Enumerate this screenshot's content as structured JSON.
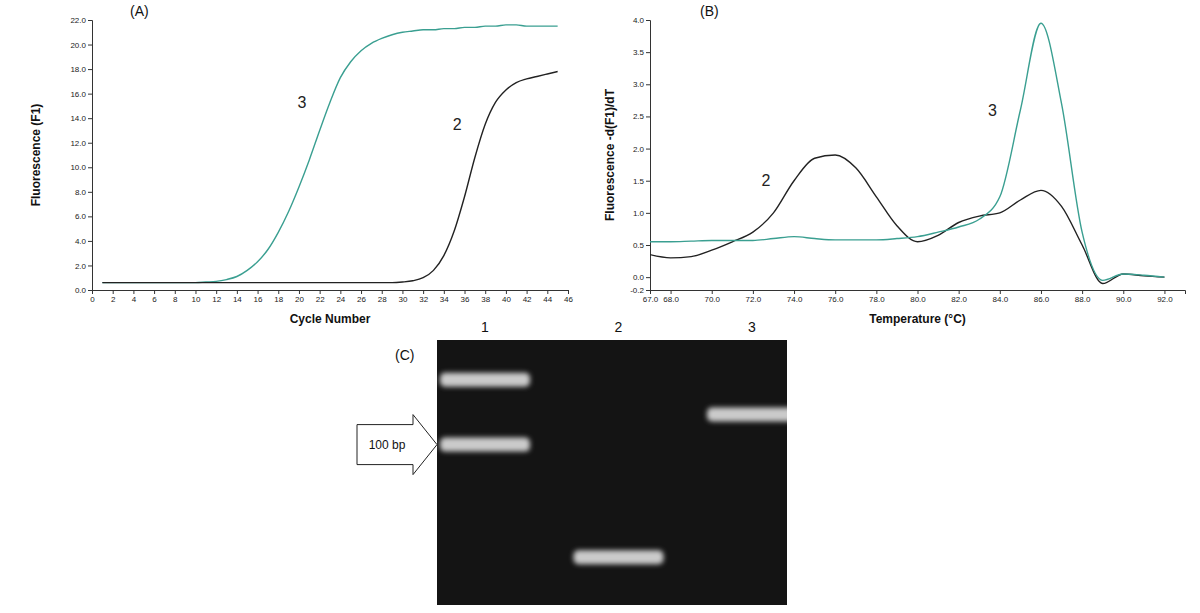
{
  "chart_data": [
    {
      "type": "line",
      "title": "(A)",
      "x_label": "Cycle Number",
      "y_label": "Fluorescence (F1)",
      "x": [
        1,
        2,
        3,
        4,
        5,
        6,
        7,
        8,
        9,
        10,
        11,
        12,
        13,
        14,
        15,
        16,
        17,
        18,
        19,
        20,
        21,
        22,
        23,
        24,
        25,
        26,
        27,
        28,
        29,
        30,
        31,
        32,
        33,
        34,
        35,
        36,
        37,
        38,
        39,
        40,
        41,
        42,
        43,
        44,
        45
      ],
      "series": [
        {
          "name": "3",
          "color": "#3a9f91",
          "values": [
            0.6,
            0.6,
            0.6,
            0.6,
            0.6,
            0.6,
            0.6,
            0.6,
            0.6,
            0.6,
            0.65,
            0.7,
            0.85,
            1.1,
            1.6,
            2.3,
            3.3,
            4.7,
            6.4,
            8.4,
            10.6,
            13.0,
            15.3,
            17.3,
            18.6,
            19.5,
            20.1,
            20.5,
            20.8,
            21.0,
            21.1,
            21.2,
            21.2,
            21.3,
            21.3,
            21.4,
            21.4,
            21.5,
            21.5,
            21.6,
            21.6,
            21.5,
            21.5,
            21.5,
            21.5
          ]
        },
        {
          "name": "2",
          "color": "#222222",
          "values": [
            0.6,
            0.6,
            0.6,
            0.6,
            0.6,
            0.6,
            0.6,
            0.6,
            0.6,
            0.6,
            0.6,
            0.6,
            0.6,
            0.6,
            0.6,
            0.6,
            0.6,
            0.6,
            0.6,
            0.6,
            0.6,
            0.6,
            0.6,
            0.6,
            0.6,
            0.6,
            0.6,
            0.6,
            0.6,
            0.65,
            0.75,
            1.0,
            1.6,
            2.8,
            4.8,
            7.6,
            10.8,
            13.5,
            15.3,
            16.3,
            16.9,
            17.2,
            17.4,
            17.6,
            17.8
          ]
        }
      ],
      "xlim": [
        0,
        46
      ],
      "xticks": [
        0,
        2,
        4,
        6,
        8,
        10,
        12,
        14,
        16,
        18,
        20,
        22,
        24,
        26,
        28,
        30,
        32,
        34,
        36,
        38,
        40,
        42,
        44,
        46
      ],
      "ylim": [
        0,
        22
      ],
      "yticks": [
        {
          "value": 0,
          "label": "0.0"
        },
        {
          "value": 2,
          "label": "2.0"
        },
        {
          "value": 4,
          "label": "4.0"
        },
        {
          "value": 6,
          "label": "6.0"
        },
        {
          "value": 8,
          "label": "8.0"
        },
        {
          "value": 10,
          "label": "10.0"
        },
        {
          "value": 12,
          "label": "12.0"
        },
        {
          "value": 14,
          "label": "14.0"
        },
        {
          "value": 16,
          "label": "16.0"
        },
        {
          "value": 18,
          "label": "18.0"
        },
        {
          "value": 20,
          "label": "20.0"
        },
        {
          "value": 22,
          "label": "22.0"
        }
      ],
      "grid": false
    },
    {
      "type": "line",
      "title": "(B)",
      "x_label": "Temperature (°C)",
      "y_label": "Fluorescence -d(F1)/dT",
      "x": [
        67,
        68,
        69,
        70,
        71,
        72,
        73,
        74,
        75,
        76,
        77,
        78,
        79,
        80,
        81,
        82,
        83,
        84,
        85,
        86,
        87,
        88,
        89,
        90,
        91,
        92
      ],
      "series": [
        {
          "name": "2",
          "color": "#222222",
          "values": [
            0.35,
            0.3,
            0.32,
            0.42,
            0.55,
            0.7,
            1.0,
            1.5,
            1.85,
            1.9,
            1.7,
            1.25,
            0.8,
            0.55,
            0.65,
            0.85,
            0.95,
            1.0,
            1.2,
            1.35,
            1.1,
            0.5,
            -0.1,
            0.05,
            0.02,
            0.0
          ]
        },
        {
          "name": "3",
          "color": "#3a9f91",
          "values": [
            0.55,
            0.55,
            0.56,
            0.57,
            0.57,
            0.57,
            0.6,
            0.63,
            0.6,
            0.58,
            0.58,
            0.58,
            0.6,
            0.63,
            0.7,
            0.78,
            0.9,
            1.25,
            2.6,
            3.95,
            2.7,
            0.7,
            -0.05,
            0.05,
            0.03,
            0.0
          ]
        }
      ],
      "xlim": [
        67,
        93
      ],
      "xticks": [
        {
          "value": 67,
          "label": "67.0"
        },
        {
          "value": 68,
          "label": "68.0"
        },
        {
          "value": 70,
          "label": "70.0"
        },
        {
          "value": 72,
          "label": "72.0"
        },
        {
          "value": 74,
          "label": "74.0"
        },
        {
          "value": 76,
          "label": "76.0"
        },
        {
          "value": 78,
          "label": "78.0"
        },
        {
          "value": 80,
          "label": "80.0"
        },
        {
          "value": 82,
          "label": "82.0"
        },
        {
          "value": 84,
          "label": "84.0"
        },
        {
          "value": 86,
          "label": "86.0"
        },
        {
          "value": 88,
          "label": "88.0"
        },
        {
          "value": 90,
          "label": "90.0"
        },
        {
          "value": 92,
          "label": "92.0"
        }
      ],
      "ylim": [
        -0.2,
        4.0
      ],
      "yticks": [
        -0.2,
        {
          "value": 0,
          "label": "0.0"
        },
        0.5,
        {
          "value": 1,
          "label": "1.0"
        },
        1.5,
        {
          "value": 2,
          "label": "2.0"
        },
        2.5,
        {
          "value": 3,
          "label": "3.0"
        },
        3.5,
        {
          "value": 4,
          "label": "4.0"
        }
      ],
      "grid": false
    },
    {
      "type": "gel",
      "title": "(C)",
      "categories": [
        "1",
        "2",
        "3"
      ],
      "bands": [
        [
          200,
          100
        ],
        [
          30
        ],
        [
          138
        ]
      ],
      "ylim": [
        18,
        306
      ],
      "log": "y",
      "tick_labels": "x",
      "annotations": [
        {
          "text": "100 bp",
          "value": 100
        }
      ]
    }
  ]
}
